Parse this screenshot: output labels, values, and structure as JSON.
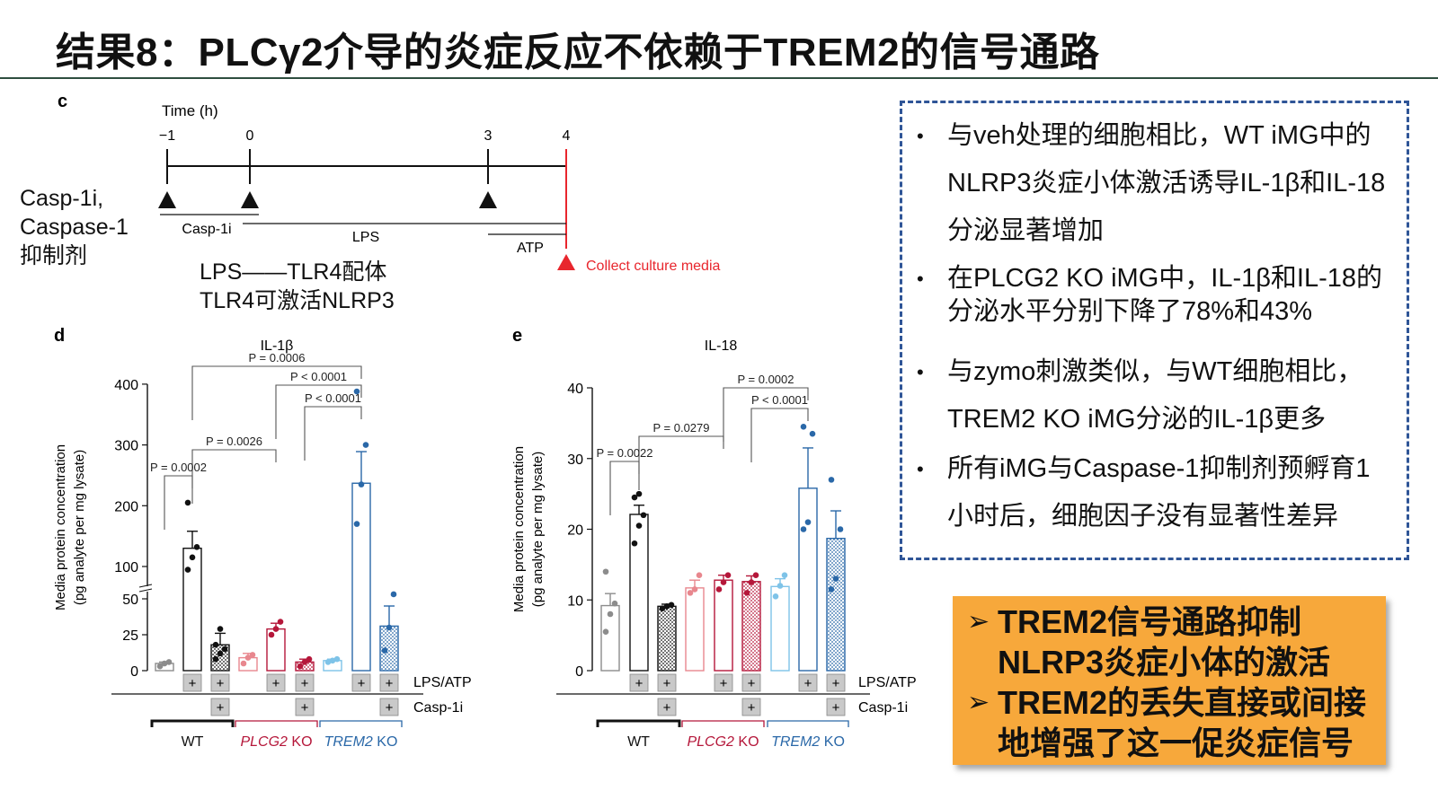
{
  "title": "结果8：PLCγ2介导的炎症反应不依赖于TREM2的信号通路",
  "timeline": {
    "panel_letter": "c",
    "axis_title": "Time (h)",
    "ticks": [
      "−1",
      "0",
      "3",
      "4"
    ],
    "labels": {
      "casp": "Casp-1i",
      "lps": "LPS",
      "atp": "ATP",
      "collect": "Collect culture media"
    },
    "side_label": [
      "Casp-1i,",
      "Caspase-1",
      "抑制剂"
    ],
    "lps_note": [
      "LPS——TLR4配体",
      "TLR4可激活NLRP3"
    ],
    "colors": {
      "collect": "#e8262d"
    }
  },
  "info_box": {
    "items": [
      "与veh处理的细胞相比，WT iMG中的NLRP3炎症小体激活诱导IL-1β和IL-18分泌显著增加",
      "在PLCG2 KO iMG中，IL-1β和IL-18的分泌水平分别下降了78%和43%",
      "与zymo刺激类似，与WT细胞相比，TREM2 KO iMG分泌的IL-1β更多",
      "所有iMG与Caspase-1抑制剂预孵育1小时后，细胞因子没有显著性差异"
    ],
    "item_lines": [
      [
        "与veh处理的细胞相比，WT iMG中的",
        "NLRP3炎症小体激活诱导IL-1β和IL-18",
        "分泌显著增加"
      ],
      [
        "在PLCG2 KO iMG中，IL-1β和IL-18的",
        "分泌水平分别下降了78%和43%"
      ],
      [
        "与zymo刺激类似，与WT细胞相比，",
        "TREM2 KO iMG分泌的IL-1β更多"
      ],
      [
        "所有iMG与Caspase-1抑制剂预孵育1",
        "小时后，细胞因子没有显著性差异"
      ]
    ],
    "bullet": "•"
  },
  "summary": {
    "arrow": "➢",
    "rows": [
      [
        "TREM2信号通路抑制",
        "NLRP3炎症小体的激活"
      ],
      [
        "TREM2的丢失直接或间接",
        "地增强了这一促炎症信号"
      ]
    ]
  },
  "chart_data": [
    {
      "panel_letter": "d",
      "type": "bar",
      "title": "IL-1β",
      "ylabel": "Media protein concentration",
      "ylabel2": "(pg analyte per mg lysate)",
      "yticks": [
        "0",
        "25",
        "50",
        "100",
        "200",
        "300",
        "400"
      ],
      "ylim": [
        0,
        400
      ],
      "axis_break": true,
      "row_labels": [
        "LPS/ATP",
        "Casp-1i"
      ],
      "groups": [
        {
          "name": "WT",
          "color": "#111111"
        },
        {
          "name": "PLCG2 KO",
          "color": "#b5173a",
          "italic_part": "PLCG2"
        },
        {
          "name": "TREM2 KO",
          "color": "#2a68a8",
          "italic_part": "TREM2"
        }
      ],
      "bars": [
        {
          "group": 0,
          "value": 5,
          "err": 1,
          "lps": false,
          "casp": false,
          "fill": "none",
          "color": "#8c8c8c",
          "points": [
            3,
            5,
            6
          ]
        },
        {
          "group": 0,
          "value": 130,
          "err": 28,
          "lps": true,
          "casp": false,
          "fill": "white",
          "color": "#111111",
          "points": [
            95,
            115,
            132,
            205
          ]
        },
        {
          "group": 0,
          "value": 18,
          "err": 8,
          "lps": true,
          "casp": true,
          "fill": "dots",
          "color": "#111111",
          "points": [
            8,
            12,
            15,
            18,
            29
          ]
        },
        {
          "group": 1,
          "value": 9,
          "err": 3,
          "lps": false,
          "casp": false,
          "fill": "none",
          "color": "#e8878e",
          "points": [
            5,
            9,
            11
          ]
        },
        {
          "group": 1,
          "value": 29,
          "err": 4,
          "lps": true,
          "casp": false,
          "fill": "white",
          "color": "#b5173a",
          "points": [
            25,
            29,
            34
          ]
        },
        {
          "group": 1,
          "value": 6,
          "err": 2,
          "lps": true,
          "casp": true,
          "fill": "dots",
          "color": "#b5173a",
          "points": [
            3,
            6,
            8
          ]
        },
        {
          "group": 2,
          "value": 7,
          "err": 1,
          "lps": false,
          "casp": false,
          "fill": "none",
          "color": "#7ec3e8",
          "points": [
            6,
            7,
            8
          ]
        },
        {
          "group": 2,
          "value": 237,
          "err": 52,
          "lps": true,
          "casp": false,
          "fill": "white",
          "color": "#2a68a8",
          "points": [
            170,
            235,
            300,
            388
          ]
        },
        {
          "group": 2,
          "value": 31,
          "err": 14,
          "lps": true,
          "casp": true,
          "fill": "dots",
          "color": "#2a68a8",
          "points": [
            14,
            30,
            57
          ]
        }
      ],
      "annotations": [
        {
          "label": "P = 0.0006",
          "from": 1,
          "to": 7
        },
        {
          "label": "P < 0.0001",
          "from": 4,
          "to": 7
        },
        {
          "label": "P < 0.0001",
          "from": 5,
          "to": 7
        },
        {
          "label": "P = 0.0026",
          "from": 1,
          "to": 4
        },
        {
          "label": "P = 0.0002",
          "from": 0,
          "to": 1
        }
      ],
      "plus": "+"
    },
    {
      "panel_letter": "e",
      "type": "bar",
      "title": "IL-18",
      "ylabel": "Media protein concentration",
      "ylabel2": "(pg analyte per mg lysate)",
      "yticks": [
        "0",
        "10",
        "20",
        "30",
        "40"
      ],
      "ylim": [
        0,
        40
      ],
      "axis_break": false,
      "row_labels": [
        "LPS/ATP",
        "Casp-1i"
      ],
      "groups": [
        {
          "name": "WT",
          "color": "#111111"
        },
        {
          "name": "PLCG2 KO",
          "color": "#b5173a",
          "italic_part": "PLCG2"
        },
        {
          "name": "TREM2 KO",
          "color": "#2a68a8",
          "italic_part": "TREM2"
        }
      ],
      "bars": [
        {
          "group": 0,
          "value": 9.2,
          "err": 1.7,
          "lps": false,
          "casp": false,
          "fill": "white",
          "color": "#8c8c8c",
          "points": [
            5.5,
            8,
            9.5,
            14
          ]
        },
        {
          "group": 0,
          "value": 22.1,
          "err": 1.3,
          "lps": true,
          "casp": false,
          "fill": "white",
          "color": "#111111",
          "points": [
            18,
            20.5,
            22,
            24.5,
            25
          ]
        },
        {
          "group": 0,
          "value": 9.1,
          "err": 0.3,
          "lps": true,
          "casp": true,
          "fill": "dots",
          "color": "#111111",
          "points": [
            8.8,
            9.1,
            9.3
          ]
        },
        {
          "group": 1,
          "value": 11.7,
          "err": 1.1,
          "lps": false,
          "casp": false,
          "fill": "white",
          "color": "#e8878e",
          "points": [
            11,
            11.5,
            13.5
          ]
        },
        {
          "group": 1,
          "value": 12.8,
          "err": 0.7,
          "lps": true,
          "casp": false,
          "fill": "white",
          "color": "#b5173a",
          "points": [
            11.5,
            12.5,
            13.5
          ]
        },
        {
          "group": 1,
          "value": 12.6,
          "err": 0.8,
          "lps": true,
          "casp": true,
          "fill": "dots",
          "color": "#b5173a",
          "points": [
            11,
            12.5,
            13.5
          ]
        },
        {
          "group": 2,
          "value": 11.9,
          "err": 1.1,
          "lps": false,
          "casp": false,
          "fill": "white",
          "color": "#7ec3e8",
          "points": [
            10.5,
            12,
            13.5
          ]
        },
        {
          "group": 2,
          "value": 25.8,
          "err": 5.7,
          "lps": true,
          "casp": false,
          "fill": "white",
          "color": "#2a68a8",
          "points": [
            20,
            21,
            33.5,
            34.5
          ]
        },
        {
          "group": 2,
          "value": 18.7,
          "err": 3.9,
          "lps": true,
          "casp": true,
          "fill": "dots",
          "color": "#2a68a8",
          "points": [
            11.5,
            13,
            20,
            27
          ]
        }
      ],
      "annotations": [
        {
          "label": "P = 0.0002",
          "from": 4,
          "to": 7
        },
        {
          "label": "P < 0.0001",
          "from": 5,
          "to": 7
        },
        {
          "label": "P = 0.0279",
          "from": 1,
          "to": 4
        },
        {
          "label": "P = 0.0022",
          "from": 0,
          "to": 1
        }
      ],
      "plus": "+"
    }
  ]
}
